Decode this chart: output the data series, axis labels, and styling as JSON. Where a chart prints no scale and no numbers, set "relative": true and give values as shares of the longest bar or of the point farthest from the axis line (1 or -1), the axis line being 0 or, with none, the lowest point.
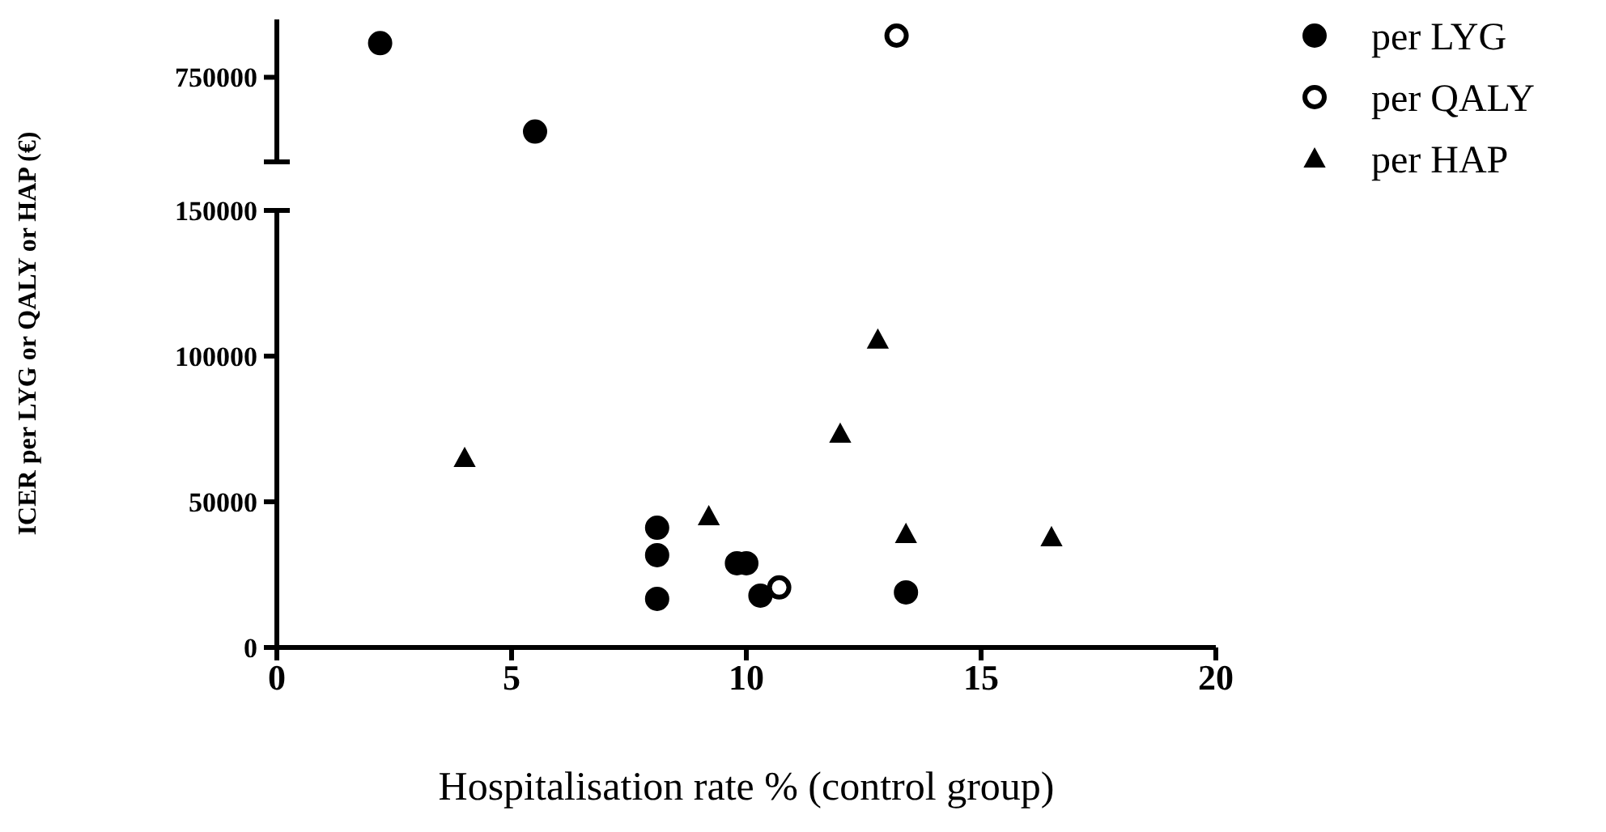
{
  "chart_data": [
    {
      "type": "scatter",
      "ylabel": "ICER per LYG or QALY or HAP (€)",
      "relative": true,
      "xlim": [
        0,
        20
      ],
      "legend": false,
      "annotations": [
        "750000"
      ],
      "series": [
        {
          "color": "#000000",
          "marker": "circle",
          "x": [
            2.2,
            5.5
          ],
          "values": [
            0.94,
            0.24
          ]
        },
        {
          "color": "#ffffff",
          "marker": "circle",
          "x": [
            13.2
          ],
          "values": [
            1
          ]
        }
      ]
    },
    {
      "type": "scatter",
      "xlabel": "Hospitalisation rate % (control group)",
      "xlim": [
        0,
        20
      ],
      "xticks": [
        0,
        5,
        10,
        15,
        20
      ],
      "ylim": [
        0,
        150000
      ],
      "yticks": [
        0,
        50000,
        100000,
        150000
      ],
      "legend": "right",
      "series": [
        {
          "name": "per LYG",
          "color": "#000000",
          "marker": "circle",
          "x": [
            8.1,
            8.1,
            8.1,
            9.8,
            10.0,
            10.3,
            13.4
          ],
          "values": [
            41100,
            31700,
            16700,
            28900,
            28900,
            17800,
            18900
          ]
        },
        {
          "name": "per QALY",
          "color": "#ffffff",
          "marker": "circle",
          "x": [
            10.7
          ],
          "values": [
            20600
          ]
        },
        {
          "name": "per HAP",
          "color": "#000000",
          "marker": "triangle",
          "x": [
            4.0,
            9.2,
            12.0,
            12.8,
            13.4,
            16.5
          ],
          "values": [
            65000,
            45000,
            73300,
            105600,
            38900,
            37800
          ]
        }
      ]
    }
  ]
}
